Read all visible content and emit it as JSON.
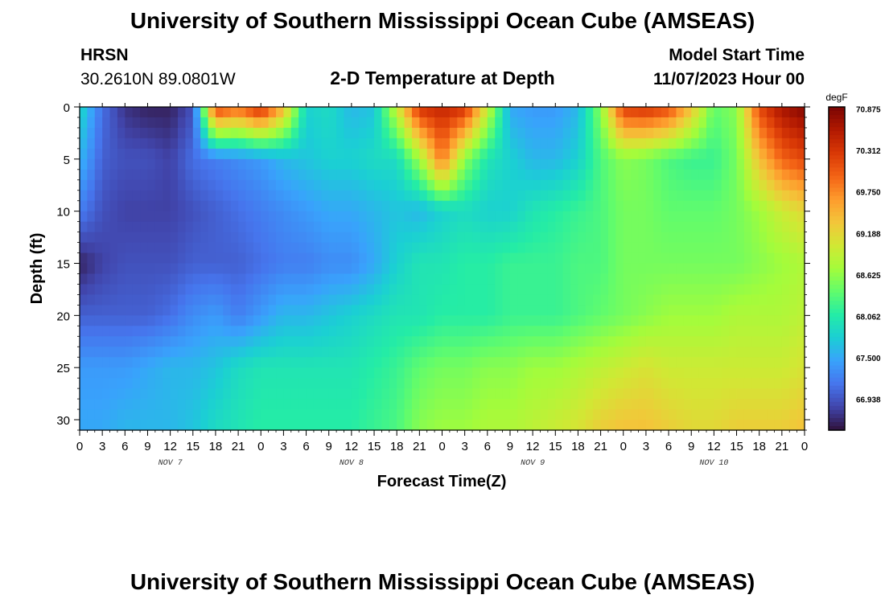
{
  "header": {
    "title_top": "University of Southern Mississippi Ocean Cube (AMSEAS)",
    "title_bottom": "University of Southern Mississippi Ocean Cube (AMSEAS)",
    "station": "HRSN",
    "coords": "30.2610N  89.0801W",
    "model_start_label": "Model Start Time",
    "model_start_value": "11/07/2023 Hour 00"
  },
  "chart_data": {
    "type": "heatmap",
    "title": "2-D Temperature at Depth",
    "xlabel": "Forecast Time(Z)",
    "ylabel": "Depth (ft)",
    "x_range_hours": [
      0,
      96
    ],
    "y_range_ft": [
      0,
      31
    ],
    "y_inverted": true,
    "x_tick_labels": [
      "0",
      "3",
      "6",
      "9",
      "12",
      "15",
      "18",
      "21",
      "0",
      "3",
      "6",
      "9",
      "12",
      "15",
      "18",
      "21",
      "0",
      "3",
      "6",
      "9",
      "12",
      "15",
      "18",
      "21",
      "0",
      "3",
      "6",
      "9",
      "12",
      "15",
      "18",
      "21",
      "0"
    ],
    "y_ticks": [
      0,
      5,
      10,
      15,
      20,
      25,
      30
    ],
    "date_labels": [
      {
        "text": "NOV 7",
        "hour": 12
      },
      {
        "text": "NOV 8",
        "hour": 36
      },
      {
        "text": "NOV 9",
        "hour": 60
      },
      {
        "text": "NOV 10",
        "hour": 84
      }
    ],
    "colorbar": {
      "unit": "degF",
      "min": 66.5,
      "max": 70.95,
      "labels": [
        "70.875",
        "70.312",
        "69.750",
        "69.188",
        "68.625",
        "68.062",
        "67.500",
        "66.938"
      ],
      "colors": [
        "#30123b",
        "#4145ab",
        "#4675ed",
        "#39a2fc",
        "#1bcfd4",
        "#24eca6",
        "#61fc6c",
        "#a4fc3b",
        "#d1e834",
        "#f3c63a",
        "#fe9b2d",
        "#f36315",
        "#d93806",
        "#b11901",
        "#7a0403"
      ]
    },
    "depths_ft": [
      0,
      5,
      10,
      15,
      20,
      25,
      31
    ],
    "times_h": [
      0,
      3,
      6,
      9,
      12,
      15,
      18,
      21,
      24,
      27,
      30,
      33,
      36,
      39,
      42,
      45,
      48,
      51,
      54,
      57,
      60,
      63,
      66,
      69,
      72,
      75,
      78,
      81,
      84,
      87,
      90,
      93,
      96
    ],
    "temperature_degF": [
      [
        67.9,
        67.1,
        66.7,
        66.6,
        66.6,
        66.9,
        70.3,
        70.0,
        70.5,
        69.5,
        67.8,
        67.9,
        67.6,
        67.7,
        69.0,
        70.4,
        70.5,
        70.4,
        69.0,
        67.5,
        67.4,
        67.4,
        67.6,
        68.6,
        70.3,
        70.4,
        70.2,
        69.4,
        68.4,
        68.6,
        70.2,
        70.7,
        70.9
      ],
      [
        67.6,
        67.0,
        66.9,
        66.9,
        66.8,
        67.1,
        67.2,
        67.3,
        67.4,
        67.6,
        67.7,
        67.8,
        67.8,
        67.9,
        67.9,
        68.7,
        69.9,
        68.6,
        68.0,
        67.8,
        67.6,
        67.6,
        67.8,
        68.3,
        68.6,
        68.5,
        68.3,
        68.2,
        68.2,
        68.5,
        69.4,
        70.0,
        70.2
      ],
      [
        67.2,
        66.9,
        66.8,
        66.8,
        66.8,
        66.9,
        67.0,
        67.1,
        67.2,
        67.3,
        67.4,
        67.5,
        67.5,
        67.6,
        67.7,
        67.6,
        67.8,
        67.9,
        67.8,
        67.8,
        68.0,
        68.1,
        68.2,
        68.3,
        68.5,
        68.5,
        68.4,
        68.4,
        68.4,
        68.5,
        68.7,
        69.0,
        69.2
      ],
      [
        66.6,
        66.8,
        66.9,
        66.9,
        66.9,
        67.0,
        67.0,
        67.0,
        67.1,
        67.2,
        67.2,
        67.3,
        67.3,
        67.5,
        67.8,
        68.0,
        68.0,
        68.1,
        68.1,
        68.2,
        68.2,
        68.2,
        68.3,
        68.3,
        68.5,
        68.5,
        68.5,
        68.5,
        68.5,
        68.5,
        68.6,
        68.7,
        68.8
      ],
      [
        67.0,
        67.0,
        67.0,
        67.0,
        67.1,
        67.3,
        67.4,
        67.2,
        67.4,
        67.6,
        67.6,
        67.7,
        67.8,
        67.9,
        68.0,
        68.0,
        68.1,
        68.1,
        68.1,
        68.2,
        68.2,
        68.2,
        68.3,
        68.4,
        68.5,
        68.6,
        68.7,
        68.7,
        68.7,
        68.8,
        68.8,
        68.8,
        68.9
      ],
      [
        67.4,
        67.4,
        67.4,
        67.5,
        67.6,
        67.6,
        67.7,
        67.9,
        68.0,
        68.0,
        68.0,
        68.0,
        68.0,
        68.1,
        68.2,
        68.4,
        68.5,
        68.5,
        68.6,
        68.6,
        68.7,
        68.7,
        68.8,
        68.9,
        69.0,
        69.1,
        69.0,
        69.0,
        69.0,
        69.0,
        69.0,
        69.0,
        69.1
      ],
      [
        67.5,
        67.5,
        67.6,
        67.6,
        67.6,
        67.7,
        67.9,
        68.0,
        68.1,
        68.1,
        68.1,
        68.1,
        68.1,
        68.2,
        68.3,
        68.6,
        68.7,
        68.7,
        68.8,
        68.8,
        68.9,
        69.0,
        69.1,
        69.3,
        69.4,
        69.4,
        69.3,
        69.2,
        69.2,
        69.3,
        69.3,
        69.3,
        69.4
      ]
    ]
  }
}
